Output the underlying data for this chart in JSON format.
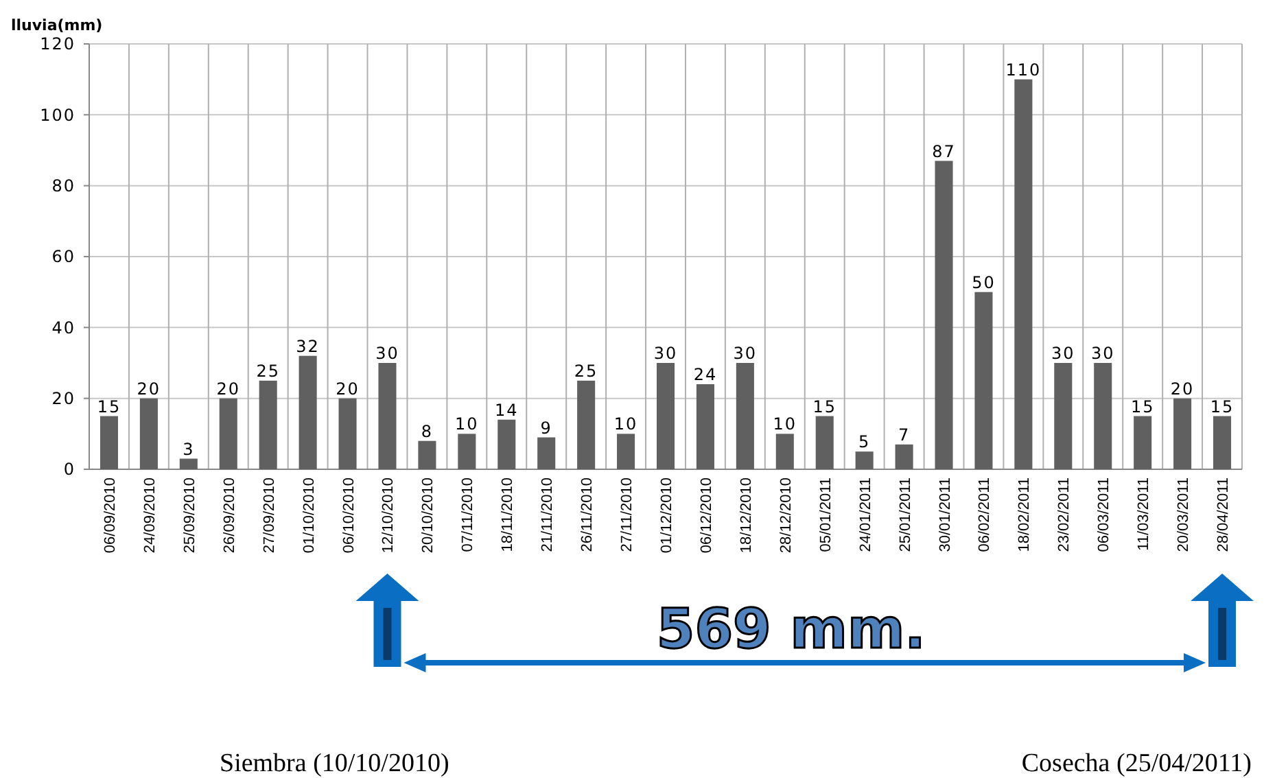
{
  "chart_data": {
    "type": "bar",
    "ylabel": "lluvia(mm)",
    "categories": [
      "06/09/2010",
      "24/09/2010",
      "25/09/2010",
      "26/09/2010",
      "27/09/2010",
      "01/10/2010",
      "06/10/2010",
      "12/10/2010",
      "20/10/2010",
      "07/11/2010",
      "18/11/2010",
      "21/11/2010",
      "26/11/2010",
      "27/11/2010",
      "01/12/2010",
      "06/12/2010",
      "18/12/2010",
      "28/12/2010",
      "05/01/2011",
      "24/01/2011",
      "25/01/2011",
      "30/01/2011",
      "06/02/2011",
      "18/02/2011",
      "23/02/2011",
      "06/03/2011",
      "11/03/2011",
      "20/03/2011",
      "28/04/2011"
    ],
    "values": [
      15,
      20,
      3,
      20,
      25,
      32,
      20,
      30,
      8,
      10,
      14,
      9,
      25,
      10,
      30,
      24,
      30,
      10,
      15,
      5,
      7,
      87,
      50,
      110,
      30,
      30,
      15,
      20,
      15
    ],
    "color": "#606060",
    "ylim": [
      0,
      120
    ],
    "yticks": [
      0,
      20,
      40,
      60,
      80,
      100,
      120
    ],
    "grid": true,
    "data_labels": true,
    "annotations": [
      "569 mm.",
      "Siembra (10/10/2010)",
      "Cosecha (25/04/2011)"
    ]
  }
}
